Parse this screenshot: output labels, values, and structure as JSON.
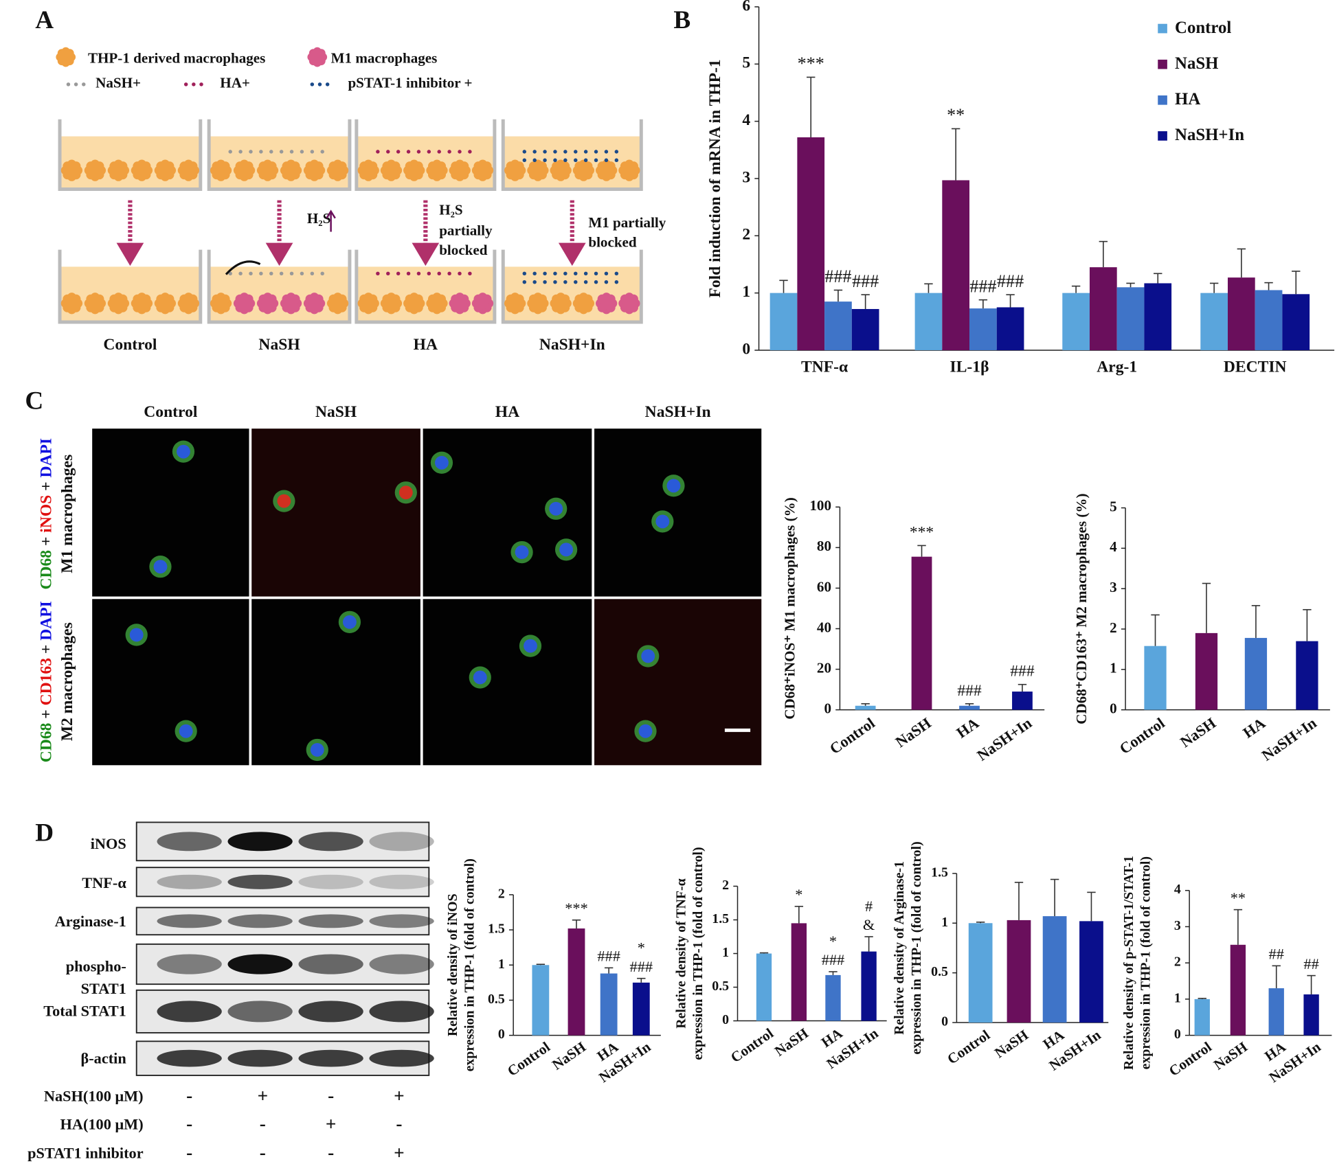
{
  "panel_labels": [
    "A",
    "B",
    "C",
    "D"
  ],
  "panel_a": {
    "legend": [
      "THP-1 derived macrophages",
      "M1 macrophages",
      "NaSH+",
      "HA+",
      "pSTAT-1 inhibitor +"
    ],
    "annotations": [
      "H₂S",
      "H₂S",
      "partially",
      "blocked",
      "M1 partially",
      "blocked"
    ],
    "groups": [
      "Control",
      "NaSH",
      "HA",
      "NaSH+In"
    ]
  },
  "panel_c": {
    "columns": [
      "Control",
      "NaSH",
      "HA",
      "NaSH+In"
    ],
    "rows": [
      {
        "markers": [
          "CD68",
          " + ",
          "iNOS",
          " + ",
          "DAPI"
        ],
        "cells": "M1 macrophages"
      },
      {
        "markers": [
          "CD68",
          " + ",
          "CD163",
          " + ",
          "DAPI"
        ],
        "cells": "M2 macrophages"
      }
    ]
  },
  "panel_d": {
    "blots": [
      "iNOS",
      "TNF-α",
      "Arginase-1",
      "phospho-",
      "STAT1",
      "Total STAT1",
      "β-actin"
    ],
    "treatments": [
      {
        "label": "NaSH(100 μM)",
        "signs": [
          "-",
          "+",
          "-",
          "+"
        ]
      },
      {
        "label": "HA(100 μM)",
        "signs": [
          "-",
          "-",
          "+",
          "-"
        ]
      },
      {
        "label": "pSTAT1 inhibitor",
        "signs": [
          "-",
          "-",
          "-",
          "+"
        ]
      }
    ]
  },
  "chart_data": [
    {
      "type": "bar",
      "ylabel": [
        "Fold induction of mRNA in THP-1"
      ],
      "categories": [
        "TNF-α",
        "IL-1β",
        "Arg-1",
        "DECTIN"
      ],
      "series": [
        {
          "name": "Control",
          "color": "#5aa5dc",
          "values": [
            1.0,
            1.0,
            1.0,
            1.0
          ],
          "errors": [
            0.22,
            0.16,
            0.12,
            0.17
          ],
          "annotations": [
            null,
            null,
            null,
            null
          ]
        },
        {
          "name": "NaSH",
          "color": "#6a0f5c",
          "values": [
            3.72,
            2.97,
            1.45,
            1.27
          ],
          "errors": [
            1.05,
            0.9,
            0.45,
            0.5
          ],
          "annotations": [
            "***",
            "**",
            null,
            null
          ]
        },
        {
          "name": "HA",
          "color": "#3f74c8",
          "values": [
            0.85,
            0.73,
            1.1,
            1.05
          ],
          "errors": [
            0.2,
            0.15,
            0.07,
            0.13
          ],
          "annotations": [
            "###",
            "###",
            null,
            null
          ]
        },
        {
          "name": "NaSH+In",
          "color": "#0a0f8c",
          "values": [
            0.72,
            0.75,
            1.17,
            0.98
          ],
          "errors": [
            0.25,
            0.22,
            0.17,
            0.4
          ],
          "annotations": [
            "###",
            "###",
            null,
            null
          ]
        }
      ],
      "ylim": [
        0,
        6
      ],
      "yticks": [
        0,
        1,
        2,
        3,
        4,
        5,
        6
      ],
      "legend": "upper right"
    },
    {
      "type": "bar",
      "ylabel": [
        "CD68⁺iNOS⁺ M1 macrophages (%)"
      ],
      "categories": [
        "Control",
        "NaSH",
        "HA",
        "NaSH+In"
      ],
      "values": [
        2,
        75.5,
        2,
        9
      ],
      "errors": [
        1,
        5.5,
        1,
        3.5
      ],
      "annotations": [
        null,
        "***",
        "###",
        "###"
      ],
      "colors": [
        "#5aa5dc",
        "#6a0f5c",
        "#3f74c8",
        "#0a0f8c"
      ],
      "ylim": [
        0,
        100
      ],
      "yticks": [
        0,
        20,
        40,
        60,
        80,
        100
      ]
    },
    {
      "type": "bar",
      "ylabel": [
        "CD68⁺CD163⁺ M2 macrophages (%)"
      ],
      "categories": [
        "Control",
        "NaSH",
        "HA",
        "NaSH+In"
      ],
      "values": [
        1.58,
        1.9,
        1.78,
        1.7
      ],
      "errors": [
        0.77,
        1.23,
        0.8,
        0.78
      ],
      "annotations": [
        null,
        null,
        null,
        null
      ],
      "colors": [
        "#5aa5dc",
        "#6a0f5c",
        "#3f74c8",
        "#0a0f8c"
      ],
      "ylim": [
        0,
        5
      ],
      "yticks": [
        0,
        1,
        2,
        3,
        4,
        5
      ]
    },
    {
      "type": "bar",
      "ylabel": [
        "Relative density of iNOS",
        "expression in THP-1  (fold of control)"
      ],
      "categories": [
        "Control",
        "NaSH",
        "HA",
        "NaSH+In"
      ],
      "values": [
        1.0,
        1.52,
        0.88,
        0.75
      ],
      "errors": [
        0.01,
        0.12,
        0.08,
        0.06
      ],
      "annotations": [
        null,
        [
          "***"
        ],
        [
          "###"
        ],
        [
          "*",
          "###"
        ]
      ],
      "colors": [
        "#5aa5dc",
        "#6a0f5c",
        "#3f74c8",
        "#0a0f8c"
      ],
      "ylim": [
        0,
        2
      ],
      "yticks": [
        0,
        0.5,
        1,
        1.5,
        2
      ]
    },
    {
      "type": "bar",
      "ylabel": [
        "Relative density of TNF-α",
        "expression in THP-1  (fold of control)"
      ],
      "categories": [
        "Control",
        "NaSH",
        "HA",
        "NaSH+In"
      ],
      "values": [
        1.0,
        1.45,
        0.68,
        1.03
      ],
      "errors": [
        0.01,
        0.25,
        0.05,
        0.22
      ],
      "annotations": [
        null,
        [
          "*"
        ],
        [
          "*",
          "###"
        ],
        [
          "#",
          "&"
        ]
      ],
      "colors": [
        "#5aa5dc",
        "#6a0f5c",
        "#3f74c8",
        "#0a0f8c"
      ],
      "ylim": [
        0,
        2
      ],
      "yticks": [
        0,
        0.5,
        1,
        1.5,
        2
      ]
    },
    {
      "type": "bar",
      "ylabel": [
        "Relative density of Arginase-1",
        "expression in THP-1  (fold of control)"
      ],
      "categories": [
        "Control",
        "NaSH",
        "HA",
        "NaSH+In"
      ],
      "values": [
        1.0,
        1.03,
        1.07,
        1.02
      ],
      "errors": [
        0.01,
        0.38,
        0.37,
        0.29
      ],
      "annotations": [
        null,
        null,
        null,
        null
      ],
      "colors": [
        "#5aa5dc",
        "#6a0f5c",
        "#3f74c8",
        "#0a0f8c"
      ],
      "ylim": [
        0,
        1.5
      ],
      "yticks": [
        0,
        0.5,
        1,
        1.5
      ]
    },
    {
      "type": "bar",
      "ylabel": [
        "Relative density of p-STAT-1/STAT-1",
        "expression in THP-1  (fold of control)"
      ],
      "categories": [
        "Control",
        "NaSH",
        "HA",
        "NaSH+In"
      ],
      "values": [
        1.0,
        2.5,
        1.3,
        1.13
      ],
      "errors": [
        0.02,
        0.97,
        0.62,
        0.52
      ],
      "annotations": [
        null,
        [
          "**"
        ],
        [
          "##"
        ],
        [
          "##"
        ]
      ],
      "colors": [
        "#5aa5dc",
        "#6a0f5c",
        "#3f74c8",
        "#0a0f8c"
      ],
      "ylim": [
        0,
        4
      ],
      "yticks": [
        0,
        1,
        2,
        3,
        4
      ]
    }
  ]
}
